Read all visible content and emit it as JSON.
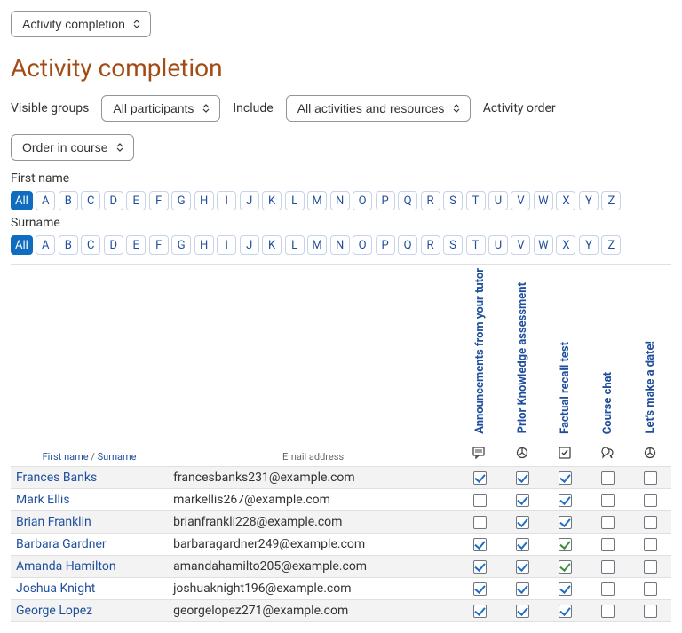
{
  "top_selector": {
    "value": "Activity completion"
  },
  "page_title": "Activity completion",
  "filters": {
    "visible_groups": {
      "label": "Visible groups",
      "value": "All participants"
    },
    "include": {
      "label": "Include",
      "value": "All activities and resources"
    },
    "activity_order": {
      "label": "Activity order",
      "value": "Order in course"
    }
  },
  "alpha": {
    "first_label": "First name",
    "surname_label": "Surname",
    "all": "All",
    "letters": [
      "A",
      "B",
      "C",
      "D",
      "E",
      "F",
      "G",
      "H",
      "I",
      "J",
      "K",
      "L",
      "M",
      "N",
      "O",
      "P",
      "Q",
      "R",
      "S",
      "T",
      "U",
      "V",
      "W",
      "X",
      "Y",
      "Z"
    ]
  },
  "table": {
    "header_firstname": "First name",
    "header_surname": "Surname",
    "header_email": "Email address",
    "activities": [
      {
        "label": "Announcements from your tutor",
        "icon": "forum"
      },
      {
        "label": "Prior Knowledge assessment",
        "icon": "choice"
      },
      {
        "label": "Factual recall test",
        "icon": "quiz"
      },
      {
        "label": "Course chat",
        "icon": "chat"
      },
      {
        "label": "Let's make a date!",
        "icon": "choice"
      }
    ],
    "rows": [
      {
        "name": "Frances Banks",
        "email": "francesbanks231@example.com",
        "c": [
          {
            "v": true
          },
          {
            "v": true
          },
          {
            "v": true
          },
          {
            "v": false
          },
          {
            "v": false
          }
        ]
      },
      {
        "name": "Mark Ellis",
        "email": "markellis267@example.com",
        "c": [
          {
            "v": false
          },
          {
            "v": true
          },
          {
            "v": true
          },
          {
            "v": false
          },
          {
            "v": false
          }
        ]
      },
      {
        "name": "Brian Franklin",
        "email": "brianfrankli228@example.com",
        "c": [
          {
            "v": false
          },
          {
            "v": true
          },
          {
            "v": true
          },
          {
            "v": false
          },
          {
            "v": false
          }
        ]
      },
      {
        "name": "Barbara Gardner",
        "email": "barbaragardner249@example.com",
        "c": [
          {
            "v": true
          },
          {
            "v": true
          },
          {
            "v": true,
            "g": true
          },
          {
            "v": false
          },
          {
            "v": false
          }
        ]
      },
      {
        "name": "Amanda Hamilton",
        "email": "amandahamilto205@example.com",
        "c": [
          {
            "v": true
          },
          {
            "v": true
          },
          {
            "v": true,
            "g": true
          },
          {
            "v": false
          },
          {
            "v": false
          }
        ]
      },
      {
        "name": "Joshua Knight",
        "email": "joshuaknight196@example.com",
        "c": [
          {
            "v": true
          },
          {
            "v": true
          },
          {
            "v": true
          },
          {
            "v": false
          },
          {
            "v": false
          }
        ]
      },
      {
        "name": "George Lopez",
        "email": "georgelopez271@example.com",
        "c": [
          {
            "v": true
          },
          {
            "v": true
          },
          {
            "v": true
          },
          {
            "v": false
          },
          {
            "v": false
          }
        ]
      }
    ]
  },
  "colors": {
    "link": "#1f4f9c",
    "heading": "#a34b14",
    "primary": "#0f6cbf",
    "tick_blue": "#1f6fc6",
    "tick_green": "#3d8b3d"
  }
}
